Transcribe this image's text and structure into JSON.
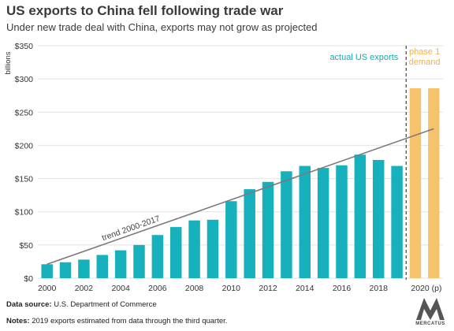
{
  "header": {
    "title": "US exports to China fell following trade war",
    "subtitle": "Under new trade deal with China, exports may not grow as projected"
  },
  "footer": {
    "source_label": "Data source:",
    "source_text": " U.S. Department of Commerce",
    "notes_label": "Notes:",
    "notes_text": " 2019 exports estimated from data through the third quarter."
  },
  "logo": {
    "name": "MERCATUS"
  },
  "chart_data": {
    "type": "bar",
    "ylabel": "billions",
    "ylim": [
      0,
      350
    ],
    "yticks": [
      0,
      50,
      100,
      150,
      200,
      250,
      300,
      350
    ],
    "ytick_labels": [
      "$0",
      "$50",
      "$100",
      "$150",
      "$200",
      "$250",
      "$300",
      "$350"
    ],
    "x": [
      2000,
      2001,
      2002,
      2003,
      2004,
      2005,
      2006,
      2007,
      2008,
      2009,
      2010,
      2011,
      2012,
      2013,
      2014,
      2015,
      2016,
      2017,
      2018,
      2019
    ],
    "values": [
      21,
      24,
      28,
      35,
      42,
      50,
      65,
      77,
      87,
      88,
      116,
      134,
      145,
      161,
      169,
      166,
      170,
      186,
      178,
      169
    ],
    "xtick_labels": [
      {
        "x": 2000,
        "label": "2000"
      },
      {
        "x": 2002,
        "label": "2002"
      },
      {
        "x": 2004,
        "label": "2004"
      },
      {
        "x": 2006,
        "label": "2006"
      },
      {
        "x": 2008,
        "label": "2008"
      },
      {
        "x": 2010,
        "label": "2010"
      },
      {
        "x": 2012,
        "label": "2012"
      },
      {
        "x": 2014,
        "label": "2014"
      },
      {
        "x": 2016,
        "label": "2016"
      },
      {
        "x": 2018,
        "label": "2018"
      },
      {
        "x": 2020,
        "label": "2020 (p)"
      }
    ],
    "projected": {
      "label": "phase 1 demand",
      "x": [
        2020,
        2021
      ],
      "values": [
        286,
        286
      ]
    },
    "trend": {
      "label": "trend 2000-2017",
      "x_start": 2000,
      "y_start": 21,
      "x_end": 2021,
      "y_end": 225
    },
    "annotations": {
      "actual_label": "actual US exports"
    },
    "divider_x": 2019.5,
    "colors": {
      "actual": "#17b1bd",
      "projected": "#f5c36b",
      "trend": "#7a7a7a",
      "grid": "#e2e2e2",
      "actual_label": "#17a8b4",
      "projected_label": "#f0b24c"
    }
  }
}
